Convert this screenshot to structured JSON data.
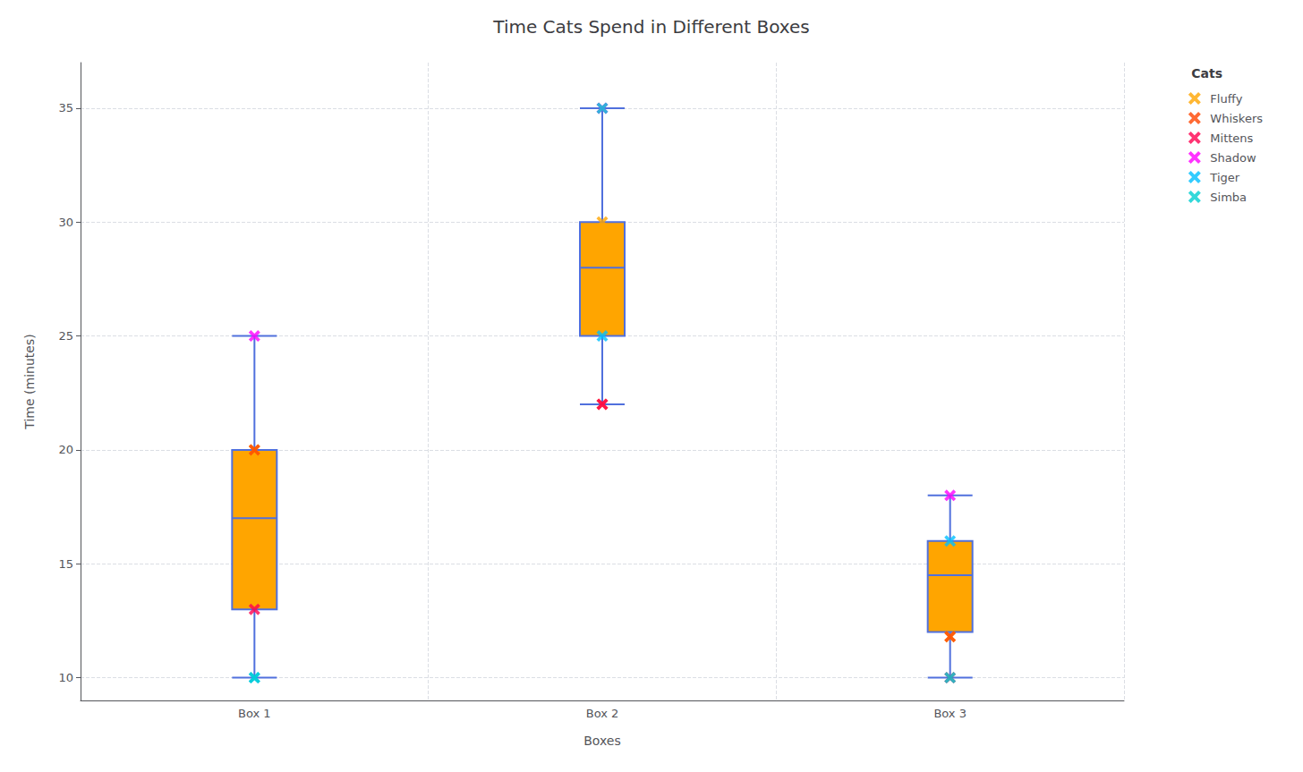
{
  "chart_data": {
    "type": "box",
    "title": "Time Cats Spend in Different Boxes",
    "xlabel": "Boxes",
    "ylabel": "Time (minutes)",
    "categories": [
      "Box 1",
      "Box 2",
      "Box 3"
    ],
    "box_stats": [
      {
        "whislo": 10,
        "q1": 13,
        "med": 17,
        "q3": 20,
        "whishi": 25
      },
      {
        "whislo": 22,
        "q1": 25,
        "med": 28,
        "q3": 30,
        "whishi": 35
      },
      {
        "whislo": 10,
        "q1": 12,
        "med": 14.5,
        "q3": 16,
        "whishi": 18
      }
    ],
    "color": "#FFA500",
    "series": [
      {
        "name": "Fluffy",
        "color": "#FFA500",
        "values": [
          20,
          30,
          11.8
        ],
        "type": "scatter",
        "marker": "x"
      },
      {
        "name": "Whiskers",
        "color": "#FF4500",
        "values": [
          20,
          22,
          11.8
        ],
        "type": "scatter",
        "marker": "x"
      },
      {
        "name": "Mittens",
        "color": "#FF0050",
        "values": [
          13,
          22,
          10
        ],
        "type": "scatter",
        "marker": "x"
      },
      {
        "name": "Shadow",
        "color": "#FF00FF",
        "values": [
          25,
          35,
          18
        ],
        "type": "scatter",
        "marker": "x"
      },
      {
        "name": "Tiger",
        "color": "#00BFFF",
        "values": [
          10,
          25,
          16
        ],
        "type": "scatter",
        "marker": "x"
      },
      {
        "name": "Simba",
        "color": "#00CED1",
        "values": [
          10,
          35,
          10
        ],
        "type": "scatter",
        "marker": "x"
      }
    ],
    "legend_title": "Cats",
    "legend": "upper right",
    "ylim": [
      9,
      37
    ],
    "yticks": [
      10,
      15,
      20,
      25,
      30,
      35
    ],
    "grid": true
  }
}
